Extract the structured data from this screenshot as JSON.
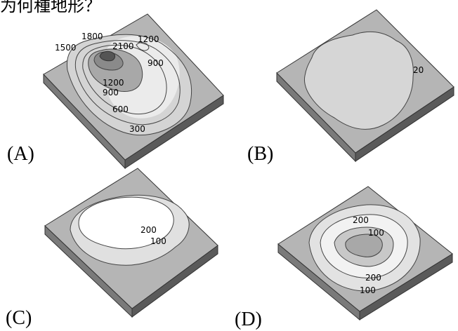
{
  "header_fragment": "为何種地形？",
  "panels": {
    "A": {
      "label": "(A)",
      "contours": [
        "1800",
        "1500",
        "2100",
        "1200",
        "900",
        "1200",
        "900",
        "600",
        "300"
      ]
    },
    "B": {
      "label": "(B)",
      "contours": [
        "20"
      ]
    },
    "C": {
      "label": "(C)",
      "contours": [
        "200",
        "100"
      ]
    },
    "D": {
      "label": "(D)",
      "contours": [
        "200",
        "100",
        "200",
        "100"
      ]
    }
  }
}
